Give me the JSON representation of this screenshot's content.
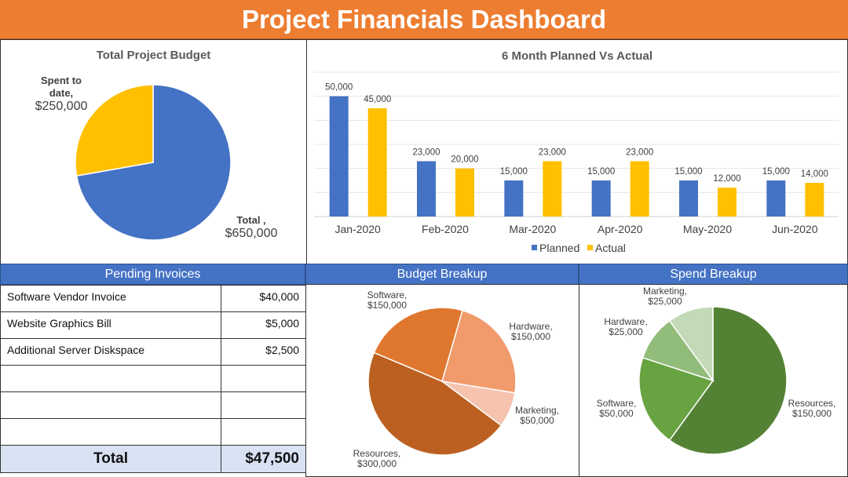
{
  "header": {
    "title": "Project Financials Dashboard"
  },
  "colors": {
    "header": "#ED7D31",
    "section_header": "#4472C4",
    "planned": "#4472C4",
    "actual": "#FFC000",
    "total_row": "#D9E2F3"
  },
  "invoices": {
    "title": "Pending Invoices",
    "rows": [
      {
        "name": "Software Vendor Invoice",
        "amount": "$40,000"
      },
      {
        "name": "Website Graphics Bill",
        "amount": "$5,000"
      },
      {
        "name": "Additional Server Diskspace",
        "amount": "$2,500"
      },
      {
        "name": "",
        "amount": ""
      },
      {
        "name": "",
        "amount": ""
      },
      {
        "name": "",
        "amount": ""
      }
    ],
    "total_label": "Total",
    "total_amount": "$47,500"
  },
  "chart_data": [
    {
      "type": "pie",
      "title": "Total Project Budget",
      "slices": [
        {
          "name": "Total",
          "value": 650000,
          "label": "$650,000",
          "color": "#4472C4"
        },
        {
          "name": "Spent to date",
          "value": 250000,
          "label": "$250,000",
          "color": "#FFC000"
        }
      ]
    },
    {
      "type": "bar",
      "title": "6 Month Planned Vs Actual",
      "categories": [
        "Jan-2020",
        "Feb-2020",
        "Mar-2020",
        "Apr-2020",
        "May-2020",
        "Jun-2020"
      ],
      "series": [
        {
          "name": "Planned",
          "color": "#4472C4",
          "values": [
            50000,
            23000,
            15000,
            15000,
            15000,
            15000
          ],
          "labels": [
            "50,000",
            "23,000",
            "15,000",
            "15,000",
            "15,000",
            "15,000"
          ]
        },
        {
          "name": "Actual",
          "color": "#FFC000",
          "values": [
            45000,
            20000,
            23000,
            23000,
            12000,
            14000
          ],
          "labels": [
            "45,000",
            "20,000",
            "23,000",
            "23,000",
            "12,000",
            "14,000"
          ]
        }
      ],
      "ylim": [
        0,
        60000
      ],
      "grid": true,
      "legend": "bottom"
    },
    {
      "type": "pie",
      "title": "Budget Breakup",
      "slices": [
        {
          "name": "Hardware",
          "value": 150000,
          "label": "$150,000",
          "color": "#F19B6C"
        },
        {
          "name": "Marketing",
          "value": 50000,
          "label": "$50,000",
          "color": "#F6C3AE"
        },
        {
          "name": "Resources",
          "value": 300000,
          "label": "$300,000",
          "color": "#BC6021"
        },
        {
          "name": "Software",
          "value": 150000,
          "label": "$150,000",
          "color": "#E0772E"
        }
      ]
    },
    {
      "type": "pie",
      "title": "Spend Breakup",
      "slices": [
        {
          "name": "Resources",
          "value": 150000,
          "label": "$150,000",
          "color": "#548235"
        },
        {
          "name": "Software",
          "value": 50000,
          "label": "$50,000",
          "color": "#68A342"
        },
        {
          "name": "Hardware",
          "value": 25000,
          "label": "$25,000",
          "color": "#92BC7A"
        },
        {
          "name": "Marketing",
          "value": 25000,
          "label": "$25,000",
          "color": "#C3DAB8"
        }
      ]
    }
  ]
}
